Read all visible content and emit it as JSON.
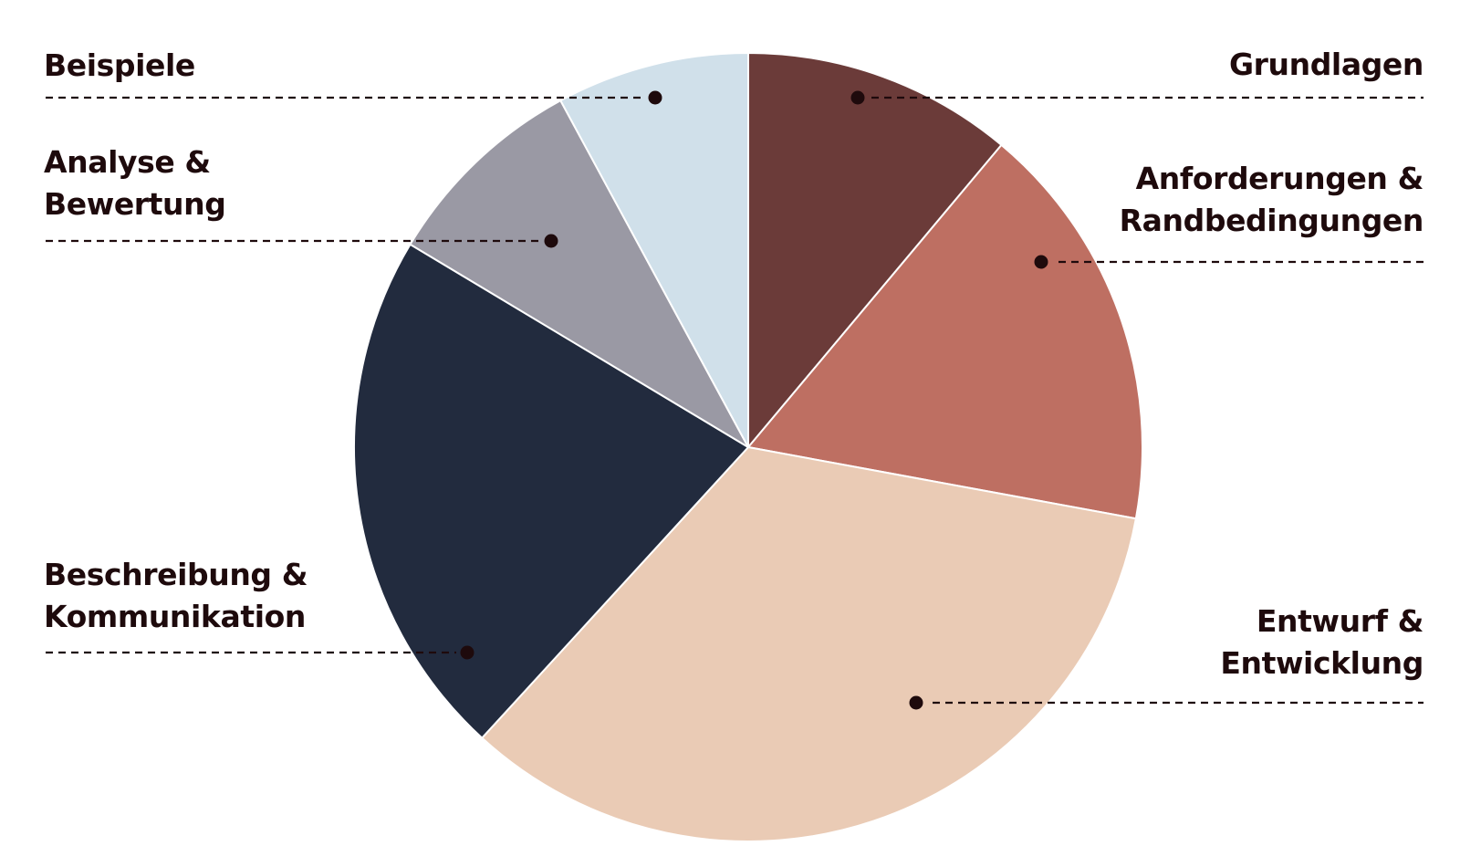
{
  "chart_data": {
    "type": "pie",
    "title": "",
    "start_angle_deg": 0,
    "direction": "clockwise",
    "slices": [
      {
        "label_lines": [
          "Grundlagen"
        ],
        "value": 11.1,
        "color": "#6b3b39"
      },
      {
        "label_lines": [
          "Anforderungen &",
          "Randbedingungen"
        ],
        "value": 16.8,
        "color": "#be6f62"
      },
      {
        "label_lines": [
          "Entwurf &",
          "Entwicklung"
        ],
        "value": 33.9,
        "color": "#eacbb5"
      },
      {
        "label_lines": [
          "Beschreibung &",
          "Kommunikation"
        ],
        "value": 21.8,
        "color": "#222b3e"
      },
      {
        "label_lines": [
          "Analyse &",
          "Bewertung"
        ],
        "value": 8.5,
        "color": "#9a99a4"
      },
      {
        "label_lines": [
          "Beispiele"
        ],
        "value": 7.9,
        "color": "#d0e0ea"
      }
    ]
  }
}
